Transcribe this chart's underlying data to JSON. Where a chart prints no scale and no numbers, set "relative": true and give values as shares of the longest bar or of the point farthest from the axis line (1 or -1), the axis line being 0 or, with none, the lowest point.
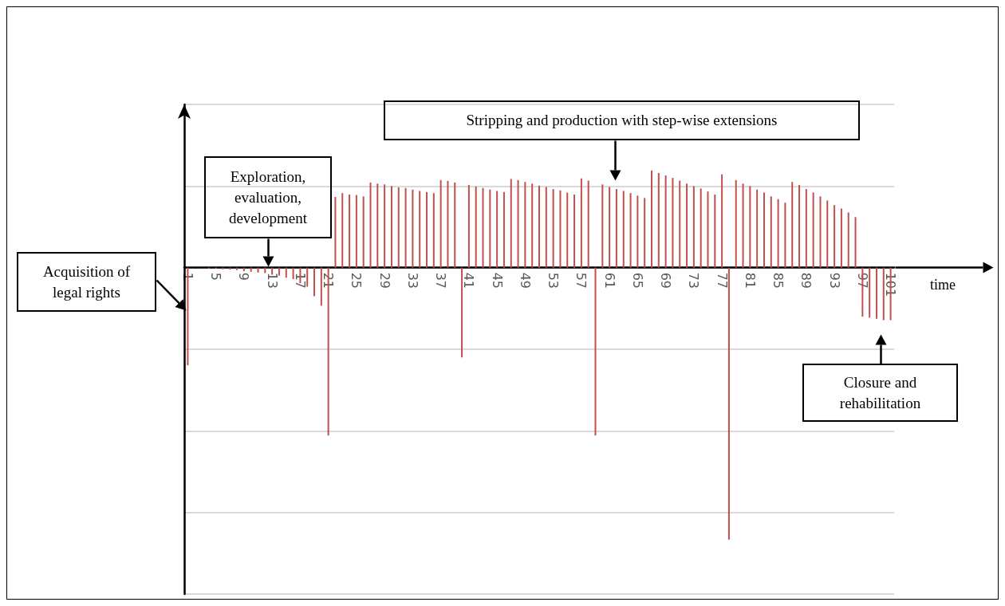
{
  "chart_data": {
    "type": "bar",
    "relative": true,
    "xlabel": "time",
    "color": "#c0504d",
    "grid": "y",
    "categories": [
      "1",
      null,
      null,
      null,
      "5",
      null,
      null,
      null,
      "9",
      null,
      null,
      null,
      "13",
      null,
      null,
      null,
      "17",
      null,
      null,
      null,
      "21",
      null,
      null,
      null,
      "25",
      null,
      null,
      null,
      "29",
      null,
      null,
      null,
      "33",
      null,
      null,
      null,
      "37",
      null,
      null,
      null,
      "41",
      null,
      null,
      null,
      "45",
      null,
      null,
      null,
      "49",
      null,
      null,
      null,
      "53",
      null,
      null,
      null,
      "57",
      null,
      null,
      null,
      "61",
      null,
      null,
      null,
      "65",
      null,
      null,
      null,
      "69",
      null,
      null,
      null,
      "73",
      null,
      null,
      null,
      "77",
      null,
      null,
      null,
      "81",
      null,
      null,
      null,
      "85",
      null,
      null,
      null,
      "89",
      null,
      null,
      null,
      "93",
      null,
      null,
      null,
      "97",
      null,
      null,
      null,
      "101"
    ],
    "values": [
      -0.359,
      null,
      null,
      -0.004,
      -0.004,
      -0.006,
      -0.007,
      -0.009,
      -0.013,
      -0.015,
      -0.018,
      -0.02,
      -0.026,
      -0.029,
      -0.037,
      -0.042,
      -0.057,
      -0.07,
      -0.105,
      -0.14,
      -0.617,
      0.26,
      0.274,
      0.269,
      0.267,
      0.262,
      0.313,
      0.309,
      0.306,
      0.3,
      0.295,
      0.293,
      0.287,
      0.282,
      0.278,
      0.274,
      0.322,
      0.319,
      0.313,
      -0.33,
      0.304,
      0.298,
      0.293,
      0.287,
      0.282,
      0.278,
      0.326,
      0.322,
      0.315,
      0.309,
      0.302,
      0.297,
      0.289,
      0.284,
      0.276,
      0.269,
      0.328,
      0.32,
      -0.617,
      0.306,
      0.297,
      0.289,
      0.282,
      0.274,
      0.265,
      0.256,
      0.357,
      0.348,
      0.339,
      0.33,
      0.32,
      0.309,
      0.3,
      0.291,
      0.28,
      0.269,
      0.343,
      -1,
      0.322,
      0.309,
      0.3,
      0.287,
      0.276,
      0.262,
      0.252,
      0.239,
      0.315,
      0.304,
      0.289,
      0.276,
      0.262,
      0.247,
      0.23,
      0.217,
      0.203,
      0.186,
      -0.18,
      -0.184,
      -0.188,
      -0.193,
      -0.193
    ],
    "annotations": [
      "Acquisition of legal rights",
      "Exploration, evaluation, development",
      "Stripping and production with step-wise extensions",
      "Closure and rehabilitation"
    ]
  }
}
